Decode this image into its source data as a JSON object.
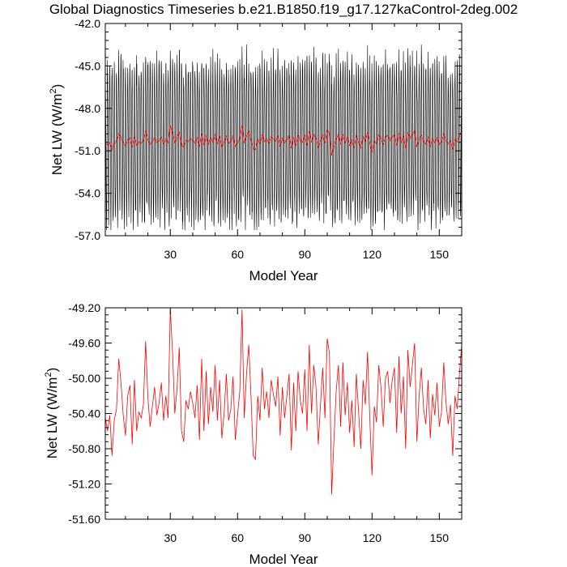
{
  "title": "Global Diagnostics Timeseries b.e21.B1850.f19_g17.127kaControl-2deg.002",
  "chart_data": [
    {
      "type": "line",
      "xlabel": "Model Year",
      "ylabel": "Net LW (W/m",
      "ylabel_sup": "2",
      "ylabel_close": ")",
      "xlim": [
        1,
        160
      ],
      "ylim": [
        -57.0,
        -42.0
      ],
      "xticks": [
        30,
        60,
        90,
        120,
        150
      ],
      "xtick_labels": [
        "30",
        "60",
        "90",
        "120",
        "150"
      ],
      "yticks": [
        -42.0,
        -45.0,
        -48.0,
        -51.0,
        -54.0,
        -57.0
      ],
      "ytick_labels": [
        "-42.0",
        "-45.0",
        "-48.0",
        "-51.0",
        "-54.0",
        "-57.0"
      ],
      "series": [
        {
          "kind": "monthly",
          "color": "#000000",
          "seasonal_peak_typical": -44.2,
          "seasonal_trough_typical": -55.0,
          "max": -42.8,
          "min": -56.6
        },
        {
          "kind": "annual-mean",
          "color": "#ff0000",
          "ref": "annual_means"
        }
      ]
    },
    {
      "type": "line",
      "xlabel": "Model Year",
      "ylabel": "Net LW (W/m",
      "ylabel_sup": "2",
      "ylabel_close": ")",
      "xlim": [
        1,
        160
      ],
      "ylim": [
        -51.6,
        -49.2
      ],
      "xticks": [
        30,
        60,
        90,
        120,
        150
      ],
      "xtick_labels": [
        "30",
        "60",
        "90",
        "120",
        "150"
      ],
      "yticks": [
        -49.2,
        -49.6,
        -50.0,
        -50.4,
        -50.8,
        -51.2,
        -51.6
      ],
      "ytick_labels": [
        "-49.20",
        "-49.60",
        "-50.00",
        "-50.40",
        "-50.80",
        "-51.20",
        "-51.60"
      ],
      "series": [
        {
          "kind": "annual-mean",
          "color": "#ff0000",
          "ref": "annual_means"
        }
      ]
    }
  ],
  "annual_means": [
    -50.45,
    -50.6,
    -50.42,
    -50.88,
    -50.48,
    -50.35,
    -49.78,
    -50.05,
    -50.42,
    -50.65,
    -50.2,
    -50.08,
    -50.75,
    -50.02,
    -50.6,
    -50.38,
    -50.45,
    -50.3,
    -49.58,
    -50.22,
    -50.55,
    -50.32,
    -50.1,
    -50.42,
    -50.28,
    -50.05,
    -50.48,
    -50.2,
    -50.45,
    -49.22,
    -49.7,
    -50.4,
    -50.12,
    -49.65,
    -50.6,
    -50.72,
    -50.25,
    -50.35,
    -50.15,
    -50.28,
    -50.45,
    -50.08,
    -50.7,
    -49.78,
    -50.6,
    -49.92,
    -50.52,
    -50.1,
    -50.38,
    -49.85,
    -50.48,
    -50.02,
    -50.68,
    -50.4,
    -49.95,
    -50.48,
    -50.35,
    -49.98,
    -50.7,
    -50.42,
    -50.15,
    -49.22,
    -50.45,
    -49.95,
    -49.62,
    -50.2,
    -50.88,
    -50.92,
    -50.2,
    -50.48,
    -49.88,
    -50.35,
    -50.15,
    -50.45,
    -50.02,
    -50.18,
    -50.32,
    -49.98,
    -50.65,
    -50.1,
    -50.45,
    -50.2,
    -49.95,
    -50.82,
    -50.05,
    -50.6,
    -49.92,
    -50.25,
    -50.4,
    -49.9,
    -50.6,
    -49.62,
    -50.4,
    -49.85,
    -50.1,
    -50.75,
    -50.3,
    -49.88,
    -50.45,
    -49.55,
    -49.72,
    -51.32,
    -50.7,
    -50.15,
    -49.85,
    -50.55,
    -49.82,
    -50.42,
    -50.05,
    -50.62,
    -50.25,
    -50.78,
    -49.95,
    -50.38,
    -50.8,
    -50.02,
    -50.3,
    -49.7,
    -50.45,
    -51.1,
    -50.32,
    -50.5,
    -49.85,
    -50.1,
    -50.55,
    -50.0,
    -49.92,
    -50.28,
    -50.02,
    -49.88,
    -50.62,
    -49.75,
    -50.4,
    -49.98,
    -50.8,
    -49.68,
    -50.1,
    -49.85,
    -49.6,
    -50.72,
    -50.2,
    -49.88,
    -50.35,
    -50.52,
    -50.02,
    -50.68,
    -50.18,
    -50.42,
    -50.05,
    -50.55,
    -50.38,
    -49.82,
    -50.28,
    -50.52,
    -50.3,
    -50.88,
    -50.2,
    -50.35,
    -49.95,
    -49.62
  ]
}
